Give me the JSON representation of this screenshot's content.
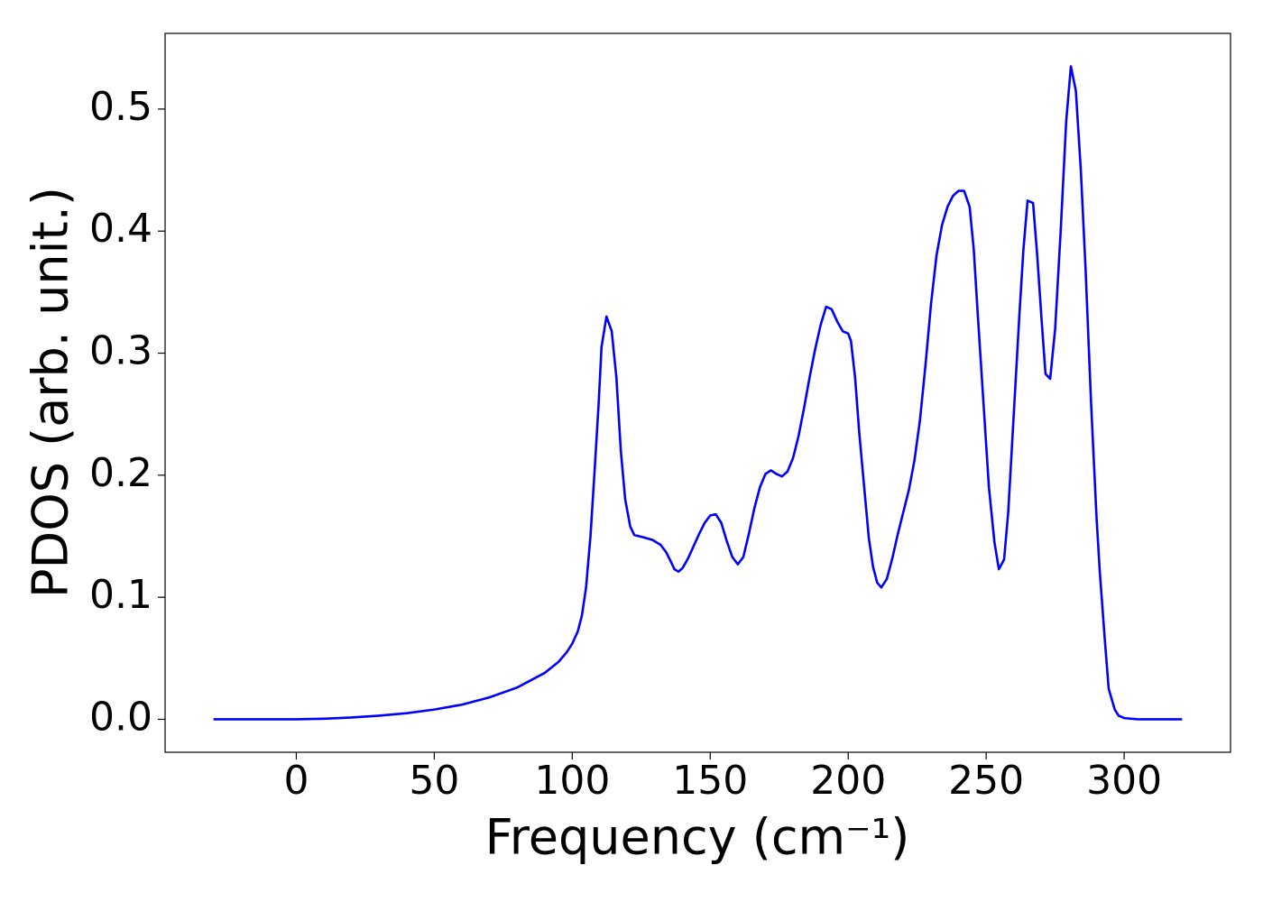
{
  "chart_data": {
    "type": "line",
    "xlabel": "Frequency (cm⁻¹)",
    "ylabel": "PDOS (arb. unit.)",
    "xlim": [
      -47.55,
      338.55
    ],
    "ylim": [
      -0.027,
      0.562
    ],
    "xticks": [
      0,
      50,
      100,
      150,
      200,
      250,
      300
    ],
    "yticks": [
      {
        "value": 0,
        "label": "0.0"
      },
      0.1,
      0.2,
      0.3,
      0.4,
      0.5
    ],
    "grid": false,
    "series": [
      {
        "color": "#0000ff",
        "x": [
          -30,
          -20,
          -10,
          0,
          10,
          20,
          30,
          40,
          50,
          60,
          70,
          80,
          90,
          95,
          98,
          100,
          102,
          103.5,
          105,
          106.6,
          108,
          109.6,
          110.6,
          112.4,
          114.3,
          116,
          117.6,
          119.2,
          121,
          122.5,
          126,
          129,
          132,
          134,
          136,
          137,
          138.5,
          140,
          142,
          144,
          146,
          148,
          150,
          152,
          154,
          156,
          158,
          160,
          162,
          164,
          166,
          168,
          170,
          172,
          174,
          176,
          178,
          180,
          182,
          184,
          186,
          188,
          190,
          192,
          194,
          196,
          198,
          200,
          201,
          202.5,
          204,
          206,
          207.5,
          209,
          210.5,
          212,
          214,
          216,
          218,
          220,
          222,
          224,
          226,
          228,
          230,
          232,
          234,
          236,
          238,
          240,
          242,
          244,
          245.5,
          247,
          249,
          251,
          253,
          254.6,
          256.5,
          258,
          260,
          262,
          263.5,
          265,
          267,
          268.5,
          270,
          271.5,
          273.2,
          275,
          277,
          279,
          280.7,
          282.5,
          284.3,
          286,
          288,
          290,
          291.2,
          293,
          294.4,
          296.6,
          298,
          300,
          305,
          321
        ],
        "values": [
          0,
          0,
          0,
          0,
          0.0005,
          0.0015,
          0.003,
          0.005,
          0.008,
          0.012,
          0.018,
          0.026,
          0.038,
          0.047,
          0.055,
          0.062,
          0.072,
          0.085,
          0.108,
          0.15,
          0.2,
          0.26,
          0.305,
          0.33,
          0.318,
          0.28,
          0.22,
          0.18,
          0.158,
          0.151,
          0.149,
          0.147,
          0.143,
          0.137,
          0.128,
          0.123,
          0.121,
          0.124,
          0.132,
          0.142,
          0.152,
          0.161,
          0.167,
          0.168,
          0.161,
          0.146,
          0.133,
          0.127,
          0.133,
          0.152,
          0.173,
          0.19,
          0.201,
          0.204,
          0.201,
          0.199,
          0.203,
          0.214,
          0.232,
          0.255,
          0.28,
          0.303,
          0.323,
          0.338,
          0.336,
          0.326,
          0.318,
          0.316,
          0.31,
          0.28,
          0.235,
          0.185,
          0.148,
          0.125,
          0.112,
          0.108,
          0.115,
          0.132,
          0.152,
          0.17,
          0.188,
          0.212,
          0.245,
          0.29,
          0.34,
          0.38,
          0.405,
          0.42,
          0.429,
          0.433,
          0.433,
          0.42,
          0.385,
          0.33,
          0.26,
          0.19,
          0.145,
          0.123,
          0.131,
          0.17,
          0.25,
          0.33,
          0.385,
          0.425,
          0.423,
          0.38,
          0.33,
          0.283,
          0.279,
          0.32,
          0.4,
          0.49,
          0.535,
          0.515,
          0.45,
          0.37,
          0.26,
          0.165,
          0.12,
          0.065,
          0.025,
          0.008,
          0.003,
          0.001,
          0,
          0
        ]
      }
    ]
  }
}
